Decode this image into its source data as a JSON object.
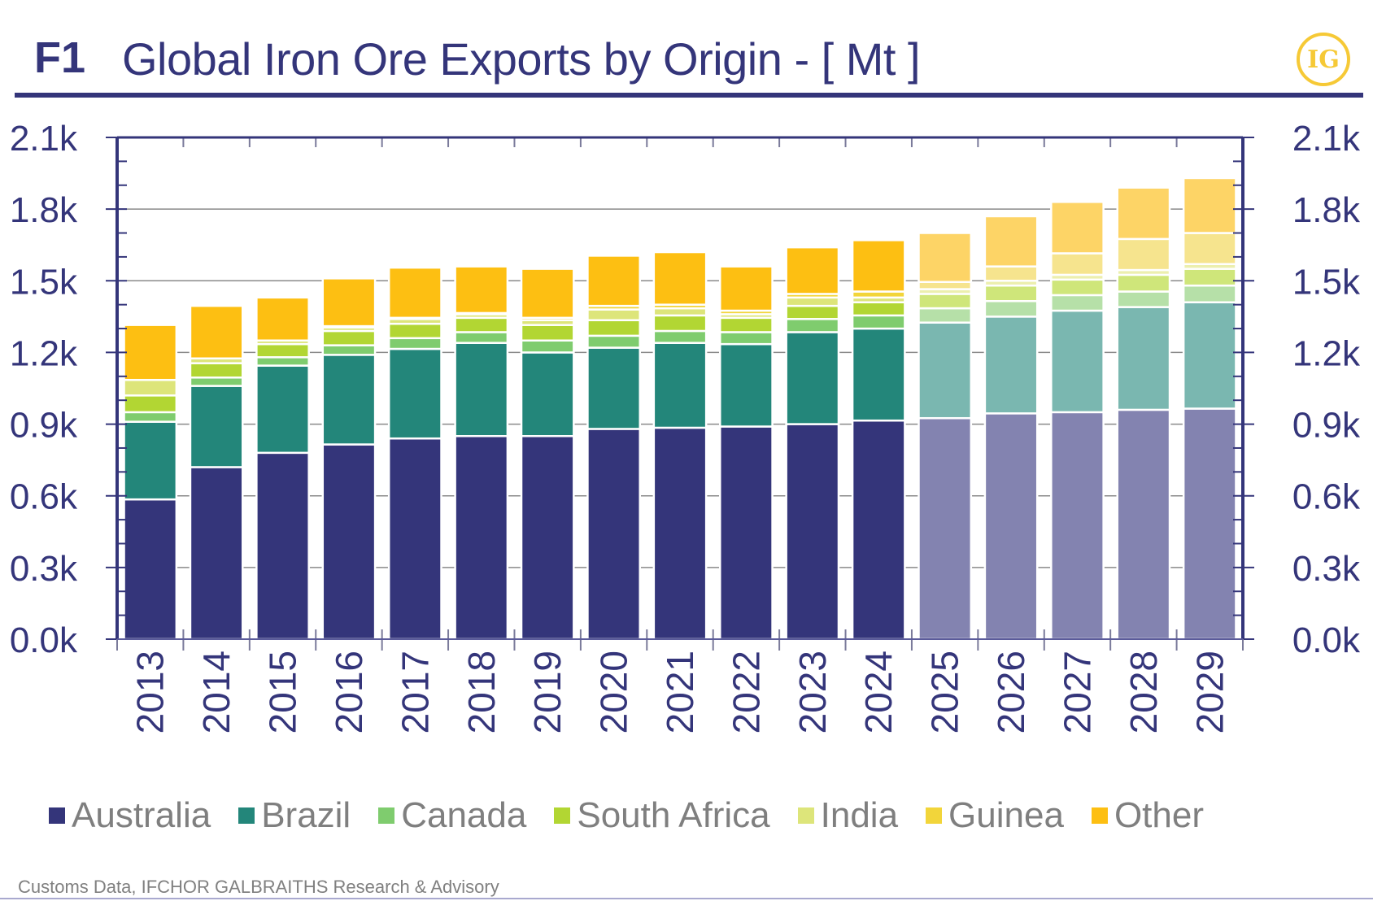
{
  "header": {
    "figure_number": "F1",
    "title": "Global Iron Ore Exports by Origin - [ Mt ]",
    "logo_text": "IG"
  },
  "source": "Customs Data, IFCHOR GALBRAITHS Research & Advisory",
  "colors": {
    "axis": "#34357a",
    "Australia": "#34357a",
    "Brazil": "#23867a",
    "Canada": "#7fcc6e",
    "South Africa": "#b2d633",
    "India": "#dde57a",
    "Guinea": "#f2d53a",
    "Other": "#fdbf12",
    "forecast_Australia": "#8383b0",
    "forecast_Brazil": "#7ab7b0",
    "forecast_Canada": "#b6e0a8",
    "forecast_South Africa": "#cfe67a",
    "forecast_India": "#ecefae",
    "forecast_Guinea": "#f6e48e",
    "forecast_Other": "#fdd466"
  },
  "chart_data": {
    "type": "bar",
    "stacked": true,
    "title": "Global Iron Ore Exports by Origin - [ Mt ]",
    "xlabel": "",
    "ylabel": "Mt",
    "ylim": [
      0,
      2100
    ],
    "yticks": [
      0,
      300,
      600,
      900,
      1200,
      1500,
      1800,
      2100
    ],
    "ytick_labels": [
      "0.0k",
      "0.3k",
      "0.6k",
      "0.9k",
      "1.2k",
      "1.5k",
      "1.8k",
      "2.1k"
    ],
    "secondary_y_axis": true,
    "grid": "horizontal",
    "legend_position": "bottom",
    "categories": [
      "2013",
      "2014",
      "2015",
      "2016",
      "2017",
      "2018",
      "2019",
      "2020",
      "2021",
      "2022",
      "2023",
      "2024",
      "2025",
      "2026",
      "2027",
      "2028",
      "2029"
    ],
    "forecast_from": "2025",
    "series": [
      {
        "name": "Australia",
        "values": [
          585,
          720,
          780,
          815,
          840,
          850,
          850,
          880,
          885,
          890,
          900,
          915,
          925,
          945,
          950,
          960,
          965
        ]
      },
      {
        "name": "Brazil",
        "values": [
          325,
          340,
          365,
          375,
          375,
          390,
          350,
          340,
          355,
          345,
          385,
          385,
          400,
          405,
          425,
          430,
          445
        ]
      },
      {
        "name": "Canada",
        "values": [
          40,
          35,
          35,
          40,
          45,
          45,
          50,
          50,
          50,
          50,
          55,
          55,
          60,
          65,
          65,
          65,
          70
        ]
      },
      {
        "name": "South Africa",
        "values": [
          70,
          60,
          55,
          60,
          60,
          60,
          65,
          65,
          65,
          60,
          55,
          55,
          60,
          65,
          65,
          70,
          70
        ]
      },
      {
        "name": "India",
        "values": [
          65,
          20,
          15,
          15,
          20,
          15,
          20,
          45,
          30,
          15,
          35,
          20,
          20,
          20,
          20,
          20,
          20
        ]
      },
      {
        "name": "Guinea",
        "values": [
          0,
          0,
          0,
          5,
          5,
          5,
          10,
          15,
          15,
          15,
          15,
          25,
          30,
          60,
          90,
          130,
          130
        ]
      },
      {
        "name": "Other",
        "values": [
          230,
          220,
          180,
          200,
          210,
          195,
          205,
          210,
          220,
          185,
          195,
          215,
          205,
          210,
          215,
          215,
          230
        ]
      }
    ]
  }
}
